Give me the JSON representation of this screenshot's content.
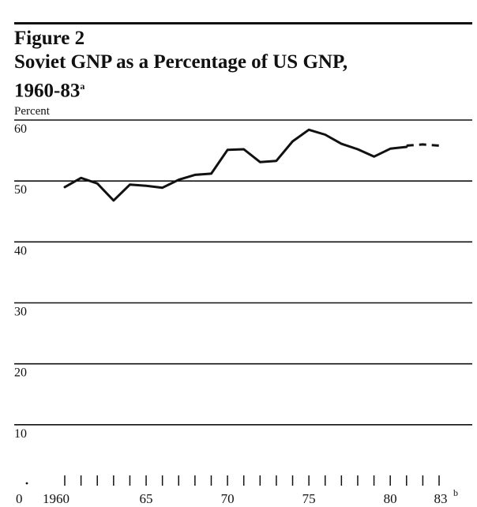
{
  "figure": {
    "label": "Figure 2",
    "title": "Soviet GNP as a Percentage of US GNP,",
    "title_line2": "1960-83",
    "title_footnote": "a",
    "unit": "Percent"
  },
  "chart_data": {
    "type": "line",
    "title": "Soviet GNP as a Percentage of US GNP, 1960-83",
    "ylabel": "Percent",
    "xlabel": "",
    "ylim": [
      0,
      60
    ],
    "xlim": [
      1960,
      1983
    ],
    "grid": true,
    "y_ticks": [
      10,
      20,
      30,
      40,
      50,
      60
    ],
    "x_tick_labels": [
      "0",
      "1960",
      "65",
      "70",
      "75",
      "80",
      "83"
    ],
    "x_tick_footnote": "b",
    "series": [
      {
        "style": "solid",
        "x": [
          1960,
          1961,
          1962,
          1963,
          1964,
          1965,
          1966,
          1967,
          1968,
          1969,
          1970,
          1971,
          1972,
          1973,
          1974,
          1975,
          1976,
          1977,
          1978,
          1979,
          1980,
          1981
        ],
        "y": [
          49.0,
          50.5,
          49.6,
          46.8,
          49.4,
          49.2,
          48.9,
          50.2,
          51.0,
          51.2,
          55.1,
          55.2,
          53.1,
          53.3,
          56.5,
          58.4,
          57.6,
          56.1,
          55.2,
          54.0,
          55.3,
          55.6
        ]
      },
      {
        "style": "dashed",
        "x": [
          1981,
          1982,
          1983
        ],
        "y": [
          55.8,
          56.0,
          55.8
        ]
      }
    ]
  }
}
